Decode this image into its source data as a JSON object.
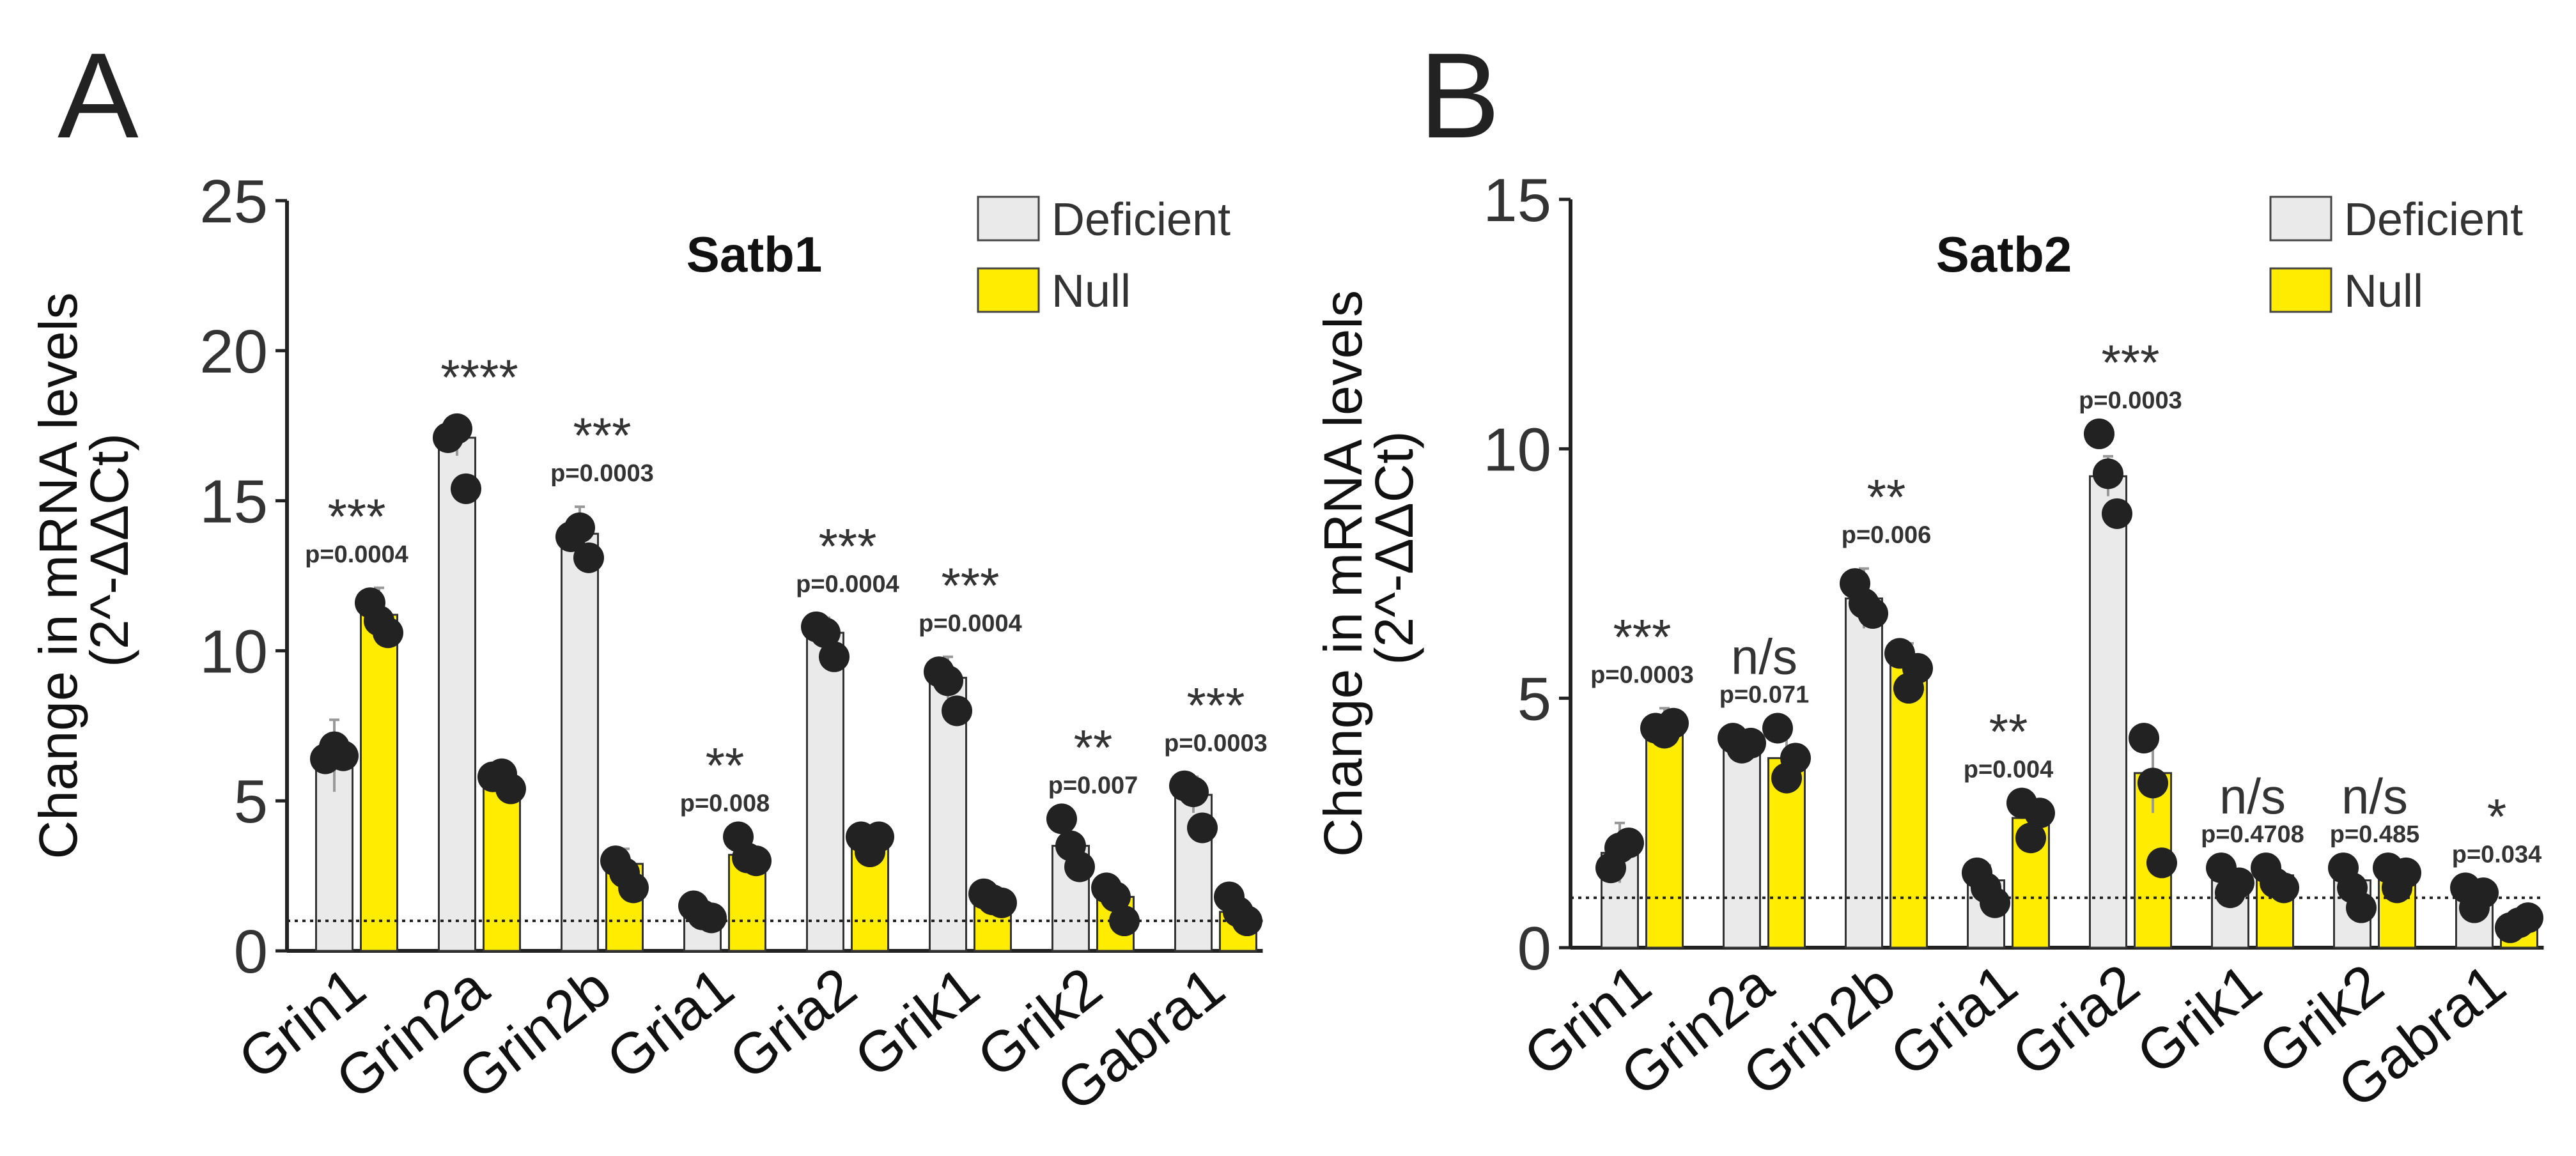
{
  "colors": {
    "deficient": "#e9eae9",
    "null": "#ffec00",
    "point": "#222222",
    "error": "#999999"
  },
  "chart_data": [
    {
      "type": "bar",
      "panel_label": "A",
      "title": "Satb1",
      "ylabel": [
        "Change in mRNA levels",
        "(2^-ΔΔCt)"
      ],
      "ylim": [
        0,
        25
      ],
      "yticks": [
        "0",
        "5",
        "10",
        "15",
        "20",
        "25"
      ],
      "reference_line": 1,
      "legend": {
        "position": "top-right",
        "entries": [
          "Deficient",
          "Null"
        ]
      },
      "categories": [
        "Grin1",
        "Grin2a",
        "Grin2b",
        "Gria1",
        "Gria2",
        "Grik1",
        "Grik2",
        "Gabra1"
      ],
      "series": [
        {
          "name": "Deficient",
          "values": [
            6.5,
            17.1,
            13.9,
            1.3,
            10.6,
            9.1,
            3.5,
            5.2
          ],
          "error": [
            1.2,
            0.6,
            0.9,
            0.3,
            0.5,
            0.7,
            0.8,
            0.6
          ],
          "points": [
            [
              6.4,
              6.8,
              6.5
            ],
            [
              17.1,
              17.4,
              15.4
            ],
            [
              13.8,
              14.1,
              13.1
            ],
            [
              1.5,
              1.2,
              1.1
            ],
            [
              10.8,
              10.6,
              9.8
            ],
            [
              9.3,
              9.0,
              8.0
            ],
            [
              4.4,
              3.5,
              2.8
            ],
            [
              5.5,
              5.3,
              4.1
            ]
          ]
        },
        {
          "name": "Null",
          "values": [
            11.2,
            5.6,
            2.9,
            3.2,
            3.6,
            1.6,
            1.8,
            1.3
          ],
          "error": [
            0.9,
            0.4,
            0.5,
            0.5,
            0.4,
            0.2,
            0.5,
            0.4
          ],
          "points": [
            [
              11.6,
              11.0,
              10.6
            ],
            [
              5.8,
              5.9,
              5.4
            ],
            [
              3.0,
              2.6,
              2.1
            ],
            [
              3.8,
              3.1,
              3.0
            ],
            [
              3.8,
              3.3,
              3.8
            ],
            [
              1.9,
              1.7,
              1.6
            ],
            [
              2.1,
              1.8,
              1.0
            ],
            [
              1.8,
              1.3,
              1.0
            ]
          ]
        }
      ],
      "annotations": [
        {
          "stars": "***",
          "p": "p=0.0004"
        },
        {
          "stars": "****",
          "p": ""
        },
        {
          "stars": "***",
          "p": "p=0.0003"
        },
        {
          "stars": "**",
          "p": "p=0.008"
        },
        {
          "stars": "***",
          "p": "p=0.0004"
        },
        {
          "stars": "***",
          "p": "p=0.0004"
        },
        {
          "stars": "**",
          "p": "p=0.007"
        },
        {
          "stars": "***",
          "p": "p=0.0003"
        }
      ]
    },
    {
      "type": "bar",
      "panel_label": "B",
      "title": "Satb2",
      "ylabel": [
        "Change in mRNA levels",
        "(2^-ΔΔCt)"
      ],
      "ylim": [
        0,
        15
      ],
      "yticks": [
        "0",
        "5",
        "10",
        "15"
      ],
      "reference_line": 1,
      "legend": {
        "position": "top-right",
        "entries": [
          "Deficient",
          "Null"
        ]
      },
      "categories": [
        "Grin1",
        "Grin2a",
        "Grin2b",
        "Gria1",
        "Gria2",
        "Grik1",
        "Grik2",
        "Gabra1"
      ],
      "series": [
        {
          "name": "Deficient",
          "values": [
            1.9,
            4.2,
            7.0,
            1.35,
            9.45,
            1.35,
            1.35,
            1.05
          ],
          "error": [
            0.6,
            0.1,
            0.6,
            0.3,
            0.4,
            0.2,
            0.2,
            0.1
          ],
          "points": [
            [
              1.6,
              2.0,
              2.1
            ],
            [
              4.2,
              4.0,
              4.1
            ],
            [
              7.3,
              6.9,
              6.7
            ],
            [
              1.5,
              1.2,
              0.9
            ],
            [
              10.3,
              9.5,
              8.7
            ],
            [
              1.6,
              1.1,
              1.3
            ],
            [
              1.6,
              1.2,
              0.8
            ],
            [
              1.2,
              0.8,
              1.1
            ]
          ]
        },
        {
          "name": "Null",
          "values": [
            4.4,
            3.8,
            5.7,
            2.6,
            3.5,
            1.45,
            1.45,
            0.4
          ],
          "error": [
            0.4,
            0.6,
            0.4,
            0.3,
            0.8,
            0.1,
            0.1,
            0.1
          ],
          "points": [
            [
              4.4,
              4.3,
              4.5
            ],
            [
              4.4,
              3.4,
              3.8
            ],
            [
              5.9,
              5.2,
              5.6
            ],
            [
              2.9,
              2.2,
              2.7
            ],
            [
              4.2,
              3.3,
              1.7
            ],
            [
              1.6,
              1.3,
              1.2
            ],
            [
              1.6,
              1.2,
              1.5
            ],
            [
              0.4,
              0.5,
              0.6
            ]
          ]
        }
      ],
      "annotations": [
        {
          "stars": "***",
          "p": "p=0.0003"
        },
        {
          "stars": "n/s",
          "p": "p=0.071"
        },
        {
          "stars": "**",
          "p": "p=0.006"
        },
        {
          "stars": "**",
          "p": "p=0.004"
        },
        {
          "stars": "***",
          "p": "p=0.0003"
        },
        {
          "stars": "n/s",
          "p": "p=0.4708"
        },
        {
          "stars": "n/s",
          "p": "p=0.485"
        },
        {
          "stars": "*",
          "p": "p=0.034"
        }
      ]
    }
  ]
}
